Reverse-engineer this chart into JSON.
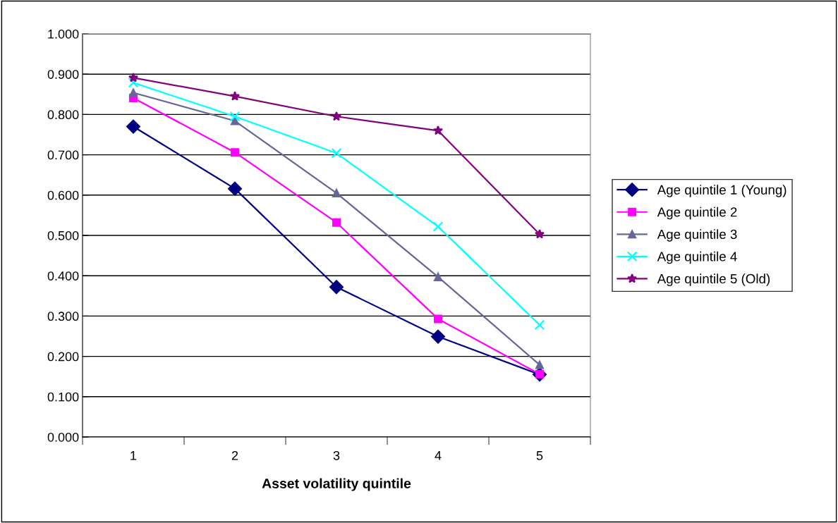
{
  "chart_data": {
    "type": "line",
    "xlabel": "Asset volatility quintile",
    "categories": [
      "1",
      "2",
      "3",
      "4",
      "5"
    ],
    "series": [
      {
        "name": "Age quintile 1 (Young)",
        "color": "#000080",
        "marker": "diamond",
        "values": [
          0.77,
          0.616,
          0.372,
          0.249,
          0.155
        ]
      },
      {
        "name": "Age quintile 2",
        "color": "#ff00ff",
        "marker": "square",
        "values": [
          0.841,
          0.706,
          0.532,
          0.293,
          0.156
        ]
      },
      {
        "name": "Age quintile 3",
        "color": "#666699",
        "marker": "triangle",
        "values": [
          0.854,
          0.784,
          0.605,
          0.397,
          0.179
        ]
      },
      {
        "name": "Age quintile 4",
        "color": "#00ffff",
        "marker": "cross",
        "values": [
          0.879,
          0.795,
          0.704,
          0.522,
          0.278
        ]
      },
      {
        "name": "Age quintile 5 (Old)",
        "color": "#800080",
        "marker": "star",
        "values": [
          0.891,
          0.845,
          0.795,
          0.76,
          0.503
        ]
      }
    ],
    "ylim": [
      0,
      1
    ],
    "yticks": [
      {
        "value": 0,
        "label": "0.000"
      },
      {
        "value": 0.1,
        "label": "0.100"
      },
      {
        "value": 0.2,
        "label": "0.200"
      },
      {
        "value": 0.3,
        "label": "0.300"
      },
      {
        "value": 0.4,
        "label": "0.400"
      },
      {
        "value": 0.5,
        "label": "0.500"
      },
      {
        "value": 0.6,
        "label": "0.600"
      },
      {
        "value": 0.7,
        "label": "0.700"
      },
      {
        "value": 0.8,
        "label": "0.800"
      },
      {
        "value": 0.9,
        "label": "0.900"
      },
      {
        "value": 1,
        "label": "1.000"
      }
    ],
    "grid": "y",
    "legend": "right",
    "line_style": "solid"
  }
}
